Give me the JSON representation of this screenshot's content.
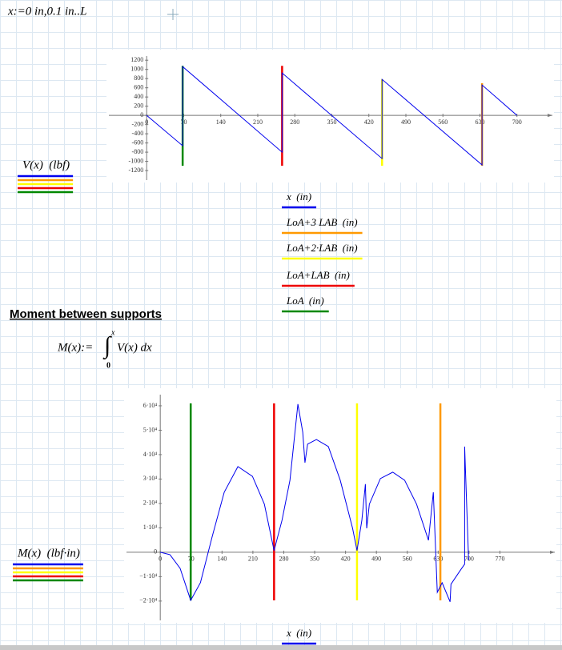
{
  "worksheet": {
    "range_def": "x:=0 in,0.1 in..L",
    "heading": "Moment between supports",
    "moment_lhs": "M(x):=",
    "integral_sign": "∫",
    "integral_upper": "x",
    "integral_lower": "0",
    "integrand": "V(x) dx"
  },
  "chart_data": [
    {
      "type": "line",
      "y_label": "V(x)  (lbf)",
      "xlim": [
        -76,
        770
      ],
      "ylim": [
        -1460,
        1430
      ],
      "xticks": [
        0,
        70,
        140,
        210,
        280,
        350,
        420,
        490,
        560,
        630,
        700
      ],
      "yticks": [
        -1200,
        -1000,
        -800,
        -600,
        -400,
        -200,
        0,
        200,
        400,
        600,
        800,
        1000,
        1200
      ],
      "series": [
        {
          "name": "x  (in)",
          "color": "#0000ee",
          "x": [
            0,
            68,
            68,
            256,
            256,
            445,
            445,
            634,
            634,
            700
          ],
          "values": [
            0,
            -661,
            1061,
            -800,
            922,
            -939,
            783,
            -1078,
            661,
            0
          ]
        },
        {
          "name": "LoA+3 LAB  (in)",
          "color": "#ff9900",
          "x": [
            634,
            634
          ],
          "values": [
            -1096,
            700
          ]
        },
        {
          "name": "LoA+2·LAB  (in)",
          "color": "#ffff00",
          "x": [
            445,
            445
          ],
          "values": [
            -1096,
            783
          ]
        },
        {
          "name": "LoA+LAB  (in)",
          "color": "#ee0000",
          "x": [
            256,
            256
          ],
          "values": [
            -1096,
            1078
          ]
        },
        {
          "name": "LoA  (in)",
          "color": "#008800",
          "x": [
            68,
            68
          ],
          "values": [
            -1096,
            1078
          ]
        }
      ]
    },
    {
      "type": "line",
      "y_label": "M(x)  (lbf·in)",
      "xlim": [
        -82,
        898
      ],
      "ylim": [
        -28900,
        67200
      ],
      "xticks": [
        0,
        70,
        140,
        210,
        280,
        350,
        420,
        490,
        560,
        630,
        700,
        770
      ],
      "yticks": [
        {
          "value": -20000,
          "label": "−2·10⁴"
        },
        {
          "value": -10000,
          "label": "−1·10⁴"
        },
        0,
        {
          "value": 10000,
          "label": "1·10⁴"
        },
        {
          "value": 20000,
          "label": "2·10⁴"
        },
        {
          "value": 30000,
          "label": "3·10⁴"
        },
        {
          "value": 40000,
          "label": "4·10⁴"
        },
        {
          "value": 50000,
          "label": "5·10⁴"
        },
        {
          "value": 60000,
          "label": "6·10⁴"
        }
      ],
      "series": [
        {
          "name": "x  (in)",
          "color": "#0000ee",
          "x": [
            0,
            22,
            45,
            69,
            91,
            118,
            145,
            176,
            209,
            236,
            258,
            276,
            294,
            312,
            323,
            328,
            334,
            354,
            381,
            408,
            436,
            446,
            457,
            465,
            468,
            474,
            499,
            527,
            554,
            581,
            608,
            619,
            628,
            639,
            657,
            659,
            681,
            690,
            690,
            699
          ],
          "values": [
            0,
            -1000,
            -6600,
            -19700,
            -12500,
            6600,
            24600,
            35100,
            31100,
            19700,
            700,
            13100,
            29500,
            60700,
            49200,
            36700,
            44300,
            46200,
            43300,
            29500,
            9800,
            700,
            13100,
            27900,
            9800,
            19700,
            30200,
            32800,
            29500,
            19700,
            4900,
            24600,
            -16400,
            -12500,
            -20300,
            -13100,
            -7200,
            -4900,
            43300,
            -3300
          ]
        },
        {
          "color": "#ff9900",
          "x": [
            635,
            635
          ],
          "values": [
            -19700,
            61000
          ]
        },
        {
          "color": "#ffff00",
          "x": [
            446,
            446
          ],
          "values": [
            -19700,
            61000
          ]
        },
        {
          "color": "#ee0000",
          "x": [
            258,
            258
          ],
          "values": [
            -19700,
            61000
          ]
        },
        {
          "color": "#008800",
          "x": [
            69,
            69
          ],
          "values": [
            -19700,
            61000
          ]
        }
      ]
    }
  ]
}
